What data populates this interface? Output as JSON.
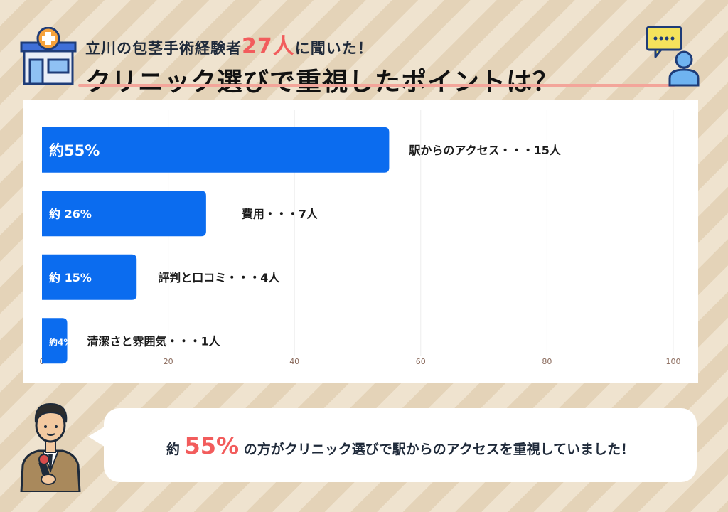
{
  "header": {
    "subtitle_pre": "立川の包茎手術経験者",
    "subtitle_highlight": "27人",
    "subtitle_post": "に聞いた！",
    "title": "クリニック選びで重視したポイントは？"
  },
  "chart_data": {
    "type": "bar",
    "orientation": "horizontal",
    "categories": [
      "駅からのアクセス",
      "費用",
      "評判と口コミ",
      "清潔さと雰囲気"
    ],
    "values": [
      55,
      26,
      15,
      4
    ],
    "bar_labels": [
      "約55%",
      "約 26%",
      "約 15%",
      "約4%"
    ],
    "annotations": [
      "駅からのアクセス・・・15人",
      "費用・・・7人",
      "評判と口コミ・・・4人",
      "清潔さと雰囲気・・・1人"
    ],
    "xlim": [
      0,
      100
    ],
    "xticks": [
      "0",
      "20",
      "40",
      "60",
      "80",
      "100"
    ],
    "grid": true,
    "bar_color": "#0b6cef"
  },
  "comment": {
    "pre": "約",
    "highlight": "55%",
    "post": "の方がクリニック選びで駅からのアクセスを重視していました！"
  },
  "colors": {
    "accent": "#f25c5c",
    "bar": "#0b6cef",
    "underline": "#f3a59a"
  },
  "icons": {
    "clinic": "clinic-building-icon",
    "person_chat": "person-speech-icon",
    "reporter": "reporter-icon"
  }
}
